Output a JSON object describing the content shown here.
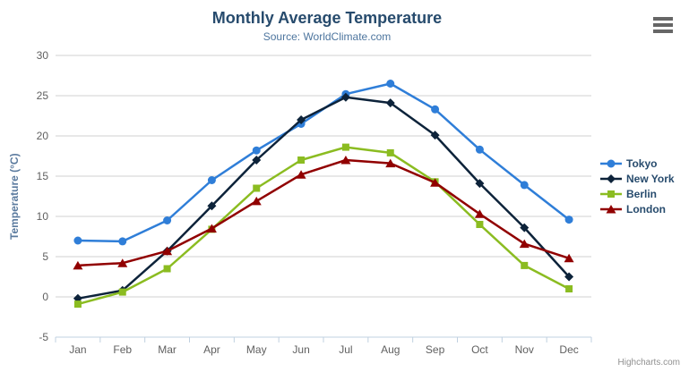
{
  "chart_data": {
    "type": "line",
    "title": "Monthly Average Temperature",
    "subtitle": "Source: WorldClimate.com",
    "ylabel": "Temperature (°C)",
    "xlabel": "",
    "ylim": [
      -5,
      30
    ],
    "ytick_interval": 5,
    "grid": true,
    "legend_position": "right",
    "categories": [
      "Jan",
      "Feb",
      "Mar",
      "Apr",
      "May",
      "Jun",
      "Jul",
      "Aug",
      "Sep",
      "Oct",
      "Nov",
      "Dec"
    ],
    "series": [
      {
        "name": "Tokyo",
        "color": "#2f7ed8",
        "marker": "circle",
        "values": [
          7.0,
          6.9,
          9.5,
          14.5,
          18.2,
          21.5,
          25.2,
          26.5,
          23.3,
          18.3,
          13.9,
          9.6
        ]
      },
      {
        "name": "New York",
        "color": "#0d233a",
        "marker": "diamond",
        "values": [
          -0.2,
          0.8,
          5.7,
          11.3,
          17.0,
          22.0,
          24.8,
          24.1,
          20.1,
          14.1,
          8.6,
          2.5
        ]
      },
      {
        "name": "Berlin",
        "color": "#8bbc21",
        "marker": "square",
        "values": [
          -0.9,
          0.6,
          3.5,
          8.4,
          13.5,
          17.0,
          18.6,
          17.9,
          14.3,
          9.0,
          3.9,
          1.0
        ]
      },
      {
        "name": "London",
        "color": "#910000",
        "marker": "triangle",
        "values": [
          3.9,
          4.2,
          5.7,
          8.5,
          11.9,
          15.2,
          17.0,
          16.6,
          14.2,
          10.3,
          6.6,
          4.8
        ]
      }
    ],
    "colors": {
      "grid_line": "#d0d0d0",
      "axis_line": "#c0d0e0",
      "axis_label": "#606060",
      "axis_title": "#5a7a9e",
      "title_text": "#274b6d",
      "subtitle_text": "#4d759e",
      "legend_text": "#274b6d"
    }
  },
  "ui": {
    "menu_icon": "hamburger-export-menu",
    "credits": "Highcharts.com"
  }
}
